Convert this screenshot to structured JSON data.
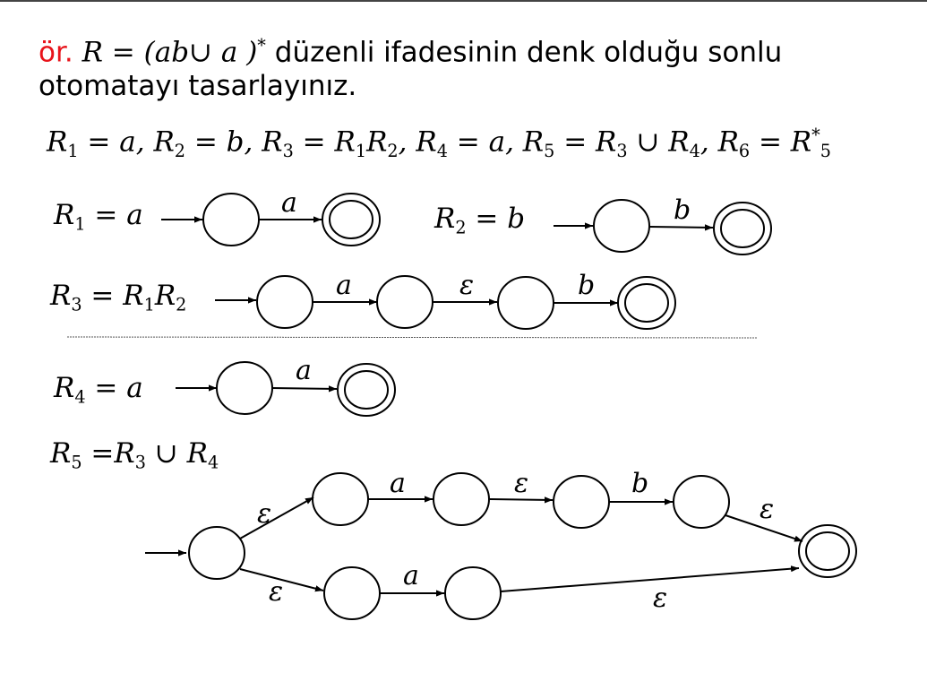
{
  "title": {
    "prefix": "ör.",
    "formula": "R =  (ab∪ a )",
    "star": "*",
    "text": " düzenli ifadesinin denk olduğu sonlu",
    "line2": "otomatayı tasarlayınız."
  },
  "definitions": {
    "r1": "R",
    "r1_sub": "1",
    "r1_val": " = a, ",
    "r2": "R",
    "r2_sub": "2",
    "r2_val": " = b, ",
    "r3": "R",
    "r3_sub": "3",
    "r3_mid": " = R",
    "r3_sub_a": "1",
    "r3_mid2": "R",
    "r3_sub_b": "2",
    "r3_end": ", ",
    "r4": "R",
    "r4_sub": "4",
    "r4_val": " = a, ",
    "r5": "R",
    "r5_sub": "5",
    "r5_mid": " = R",
    "r5_sub_a": "3",
    "r5_mid2": " ∪ R",
    "r5_sub_b": "4",
    "r5_end": ", ",
    "r6": "R",
    "r6_sub": "6",
    "r6_mid": " = R",
    "r6_sup": "*",
    "r6_sub_b": "5"
  },
  "labels": {
    "r1": {
      "main": "R",
      "sub": "1",
      "rest": " = a"
    },
    "r2": {
      "main": "R",
      "sub": "2",
      "rest": " = b"
    },
    "r3": {
      "main": "R",
      "sub": "3",
      "rest": " = R",
      "sub2": "1",
      "rest2": "R",
      "sub3": "2"
    },
    "r4": {
      "main": "R",
      "sub": "4",
      "rest": " = a"
    },
    "r5": {
      "main": "R",
      "sub": "5",
      "rest": " =R",
      "sub2": "3",
      "rest2": " ∪ R",
      "sub3": "4"
    }
  },
  "transitions": {
    "r1_a": "a",
    "r2_b": "b",
    "r3_a": "a",
    "r3_eps": "ε",
    "r3_b": "b",
    "r4_a": "a",
    "r5_eps_up": "ε",
    "r5_a": "a",
    "r5_eps_mid": "ε",
    "r5_b": "b",
    "r5_eps_final": "ε",
    "r5_eps_down": "ε",
    "r5_a2": "a",
    "r5_eps_low": "ε"
  }
}
